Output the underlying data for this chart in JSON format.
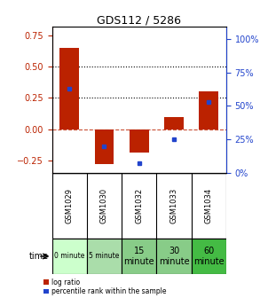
{
  "title": "GDS112 / 5286",
  "samples": [
    "GSM1029",
    "GSM1030",
    "GSM1032",
    "GSM1033",
    "GSM1034"
  ],
  "time_labels": [
    "0 minute",
    "5 minute",
    "15\nminute",
    "30\nminute",
    "60\nminute"
  ],
  "time_colors": [
    "#ccffcc",
    "#aaddaa",
    "#88cc88",
    "#88cc88",
    "#44bb44"
  ],
  "log_ratio": [
    0.65,
    -0.28,
    -0.19,
    0.1,
    0.3
  ],
  "percentile": [
    63,
    20,
    7,
    25,
    53
  ],
  "bar_color": "#bb2200",
  "dot_color": "#2244cc",
  "ylim_left": [
    -0.35,
    0.82
  ],
  "ylim_right": [
    0,
    109
  ],
  "yticks_left": [
    -0.25,
    0,
    0.25,
    0.5,
    0.75
  ],
  "yticks_right": [
    0,
    25,
    50,
    75,
    100
  ],
  "dotted_lines": [
    0.25,
    0.5
  ],
  "sample_bg": "#cccccc",
  "plot_bg": "#ffffff"
}
